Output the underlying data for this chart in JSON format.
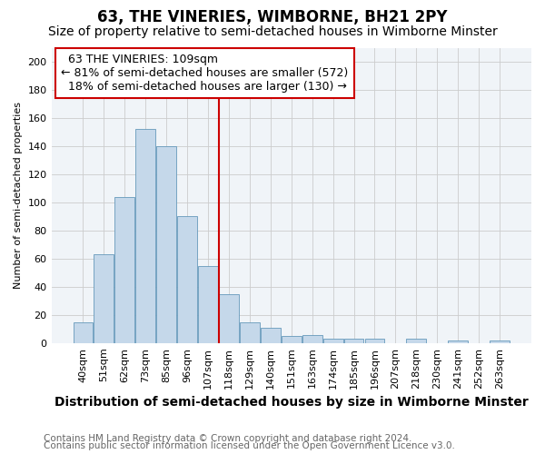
{
  "title": "63, THE VINERIES, WIMBORNE, BH21 2PY",
  "subtitle": "Size of property relative to semi-detached houses in Wimborne Minster",
  "xlabel": "Distribution of semi-detached houses by size in Wimborne Minster",
  "ylabel": "Number of semi-detached properties",
  "categories": [
    "40sqm",
    "51sqm",
    "62sqm",
    "73sqm",
    "85sqm",
    "96sqm",
    "107sqm",
    "118sqm",
    "129sqm",
    "140sqm",
    "151sqm",
    "163sqm",
    "174sqm",
    "185sqm",
    "196sqm",
    "207sqm",
    "218sqm",
    "230sqm",
    "241sqm",
    "252sqm",
    "263sqm"
  ],
  "values": [
    15,
    63,
    104,
    152,
    140,
    90,
    55,
    35,
    15,
    11,
    5,
    6,
    3,
    3,
    3,
    0,
    3,
    0,
    2,
    0,
    2
  ],
  "property_label": "63 THE VINERIES: 109sqm",
  "pct_smaller": 81,
  "n_smaller": 572,
  "pct_larger": 18,
  "n_larger": 130,
  "bar_color": "#c5d8ea",
  "bar_edge_color": "#6699bb",
  "vline_color": "#cc0000",
  "annotation_box_color": "#cc0000",
  "background_color": "#f0f4f8",
  "grid_color": "#cccccc",
  "footnote1": "Contains HM Land Registry data © Crown copyright and database right 2024.",
  "footnote2": "Contains public sector information licensed under the Open Government Licence v3.0.",
  "ylim": [
    0,
    210
  ],
  "yticks": [
    0,
    20,
    40,
    60,
    80,
    100,
    120,
    140,
    160,
    180,
    200
  ],
  "vline_index": 6,
  "title_fontsize": 12,
  "subtitle_fontsize": 10,
  "xlabel_fontsize": 10,
  "ylabel_fontsize": 8,
  "tick_fontsize": 8,
  "annotation_fontsize": 9,
  "footnote_fontsize": 7.5
}
